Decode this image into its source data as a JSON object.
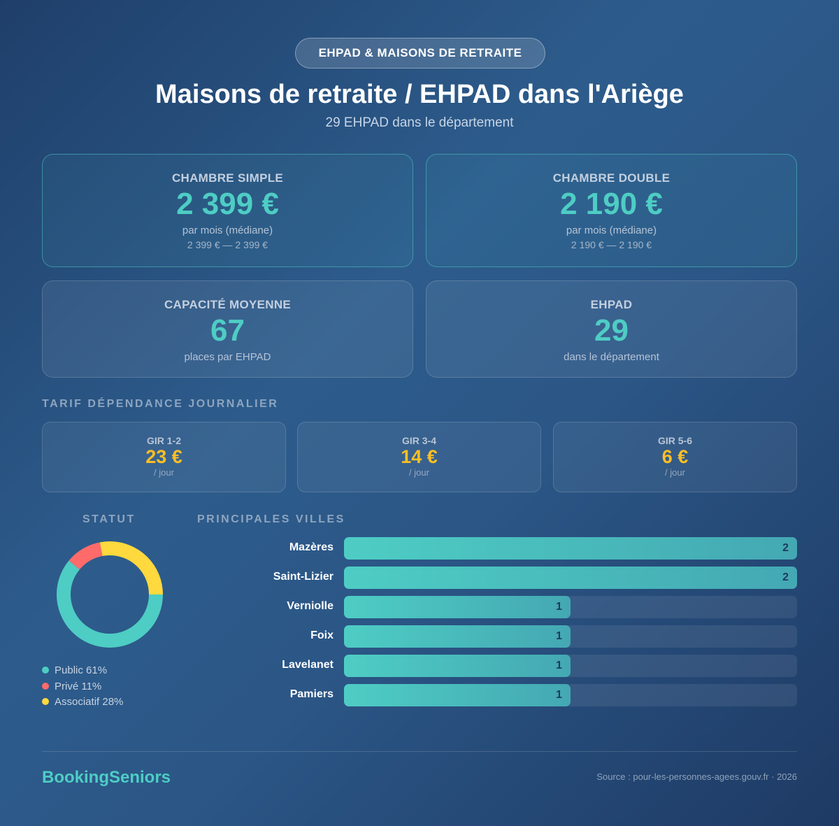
{
  "header": {
    "badge": "EHPAD & MAISONS DE RETRAITE",
    "title": "Maisons de retraite / EHPAD dans l'Ariège",
    "subtitle": "29 EHPAD dans le département"
  },
  "cards": [
    {
      "label": "CHAMBRE SIMPLE",
      "value": "2 399 €",
      "sub": "par mois (médiane)",
      "range": "2 399 € — 2 399 €"
    },
    {
      "label": "CHAMBRE DOUBLE",
      "value": "2 190 €",
      "sub": "par mois (médiane)",
      "range": "2 190 € — 2 190 €"
    },
    {
      "label": "CAPACITÉ MOYENNE",
      "value": "67",
      "sub": "places par EHPAD"
    },
    {
      "label": "EHPAD",
      "value": "29",
      "sub": "dans le département"
    }
  ],
  "dependance": {
    "title": "TARIF DÉPENDANCE JOURNALIER",
    "items": [
      {
        "label": "GIR 1-2",
        "value": "23 €",
        "unit": "/ jour"
      },
      {
        "label": "GIR 3-4",
        "value": "14 €",
        "unit": "/ jour"
      },
      {
        "label": "GIR 5-6",
        "value": "6 €",
        "unit": "/ jour"
      }
    ]
  },
  "statut": {
    "title": "STATUT",
    "slices": [
      {
        "label": "Public 61%",
        "value": 61,
        "color": "#4ecdc4"
      },
      {
        "label": "Privé 11%",
        "value": 11,
        "color": "#ff6b6b"
      },
      {
        "label": "Associatif 28%",
        "value": 28,
        "color": "#ffd93d"
      }
    ]
  },
  "villes": {
    "title": "PRINCIPALES VILLES",
    "max": 2,
    "items": [
      {
        "name": "Mazères",
        "value": 2,
        "label": "2"
      },
      {
        "name": "Saint-Lizier",
        "value": 2,
        "label": "2"
      },
      {
        "name": "Verniolle",
        "value": 1,
        "label": "1"
      },
      {
        "name": "Foix",
        "value": 1,
        "label": "1"
      },
      {
        "name": "Lavelanet",
        "value": 1,
        "label": "1"
      },
      {
        "name": "Pamiers",
        "value": 1,
        "label": "1"
      }
    ]
  },
  "footer": {
    "brand": "BookingSeniors",
    "source": "Source : pour-les-personnes-agees.gouv.fr · 2026"
  }
}
